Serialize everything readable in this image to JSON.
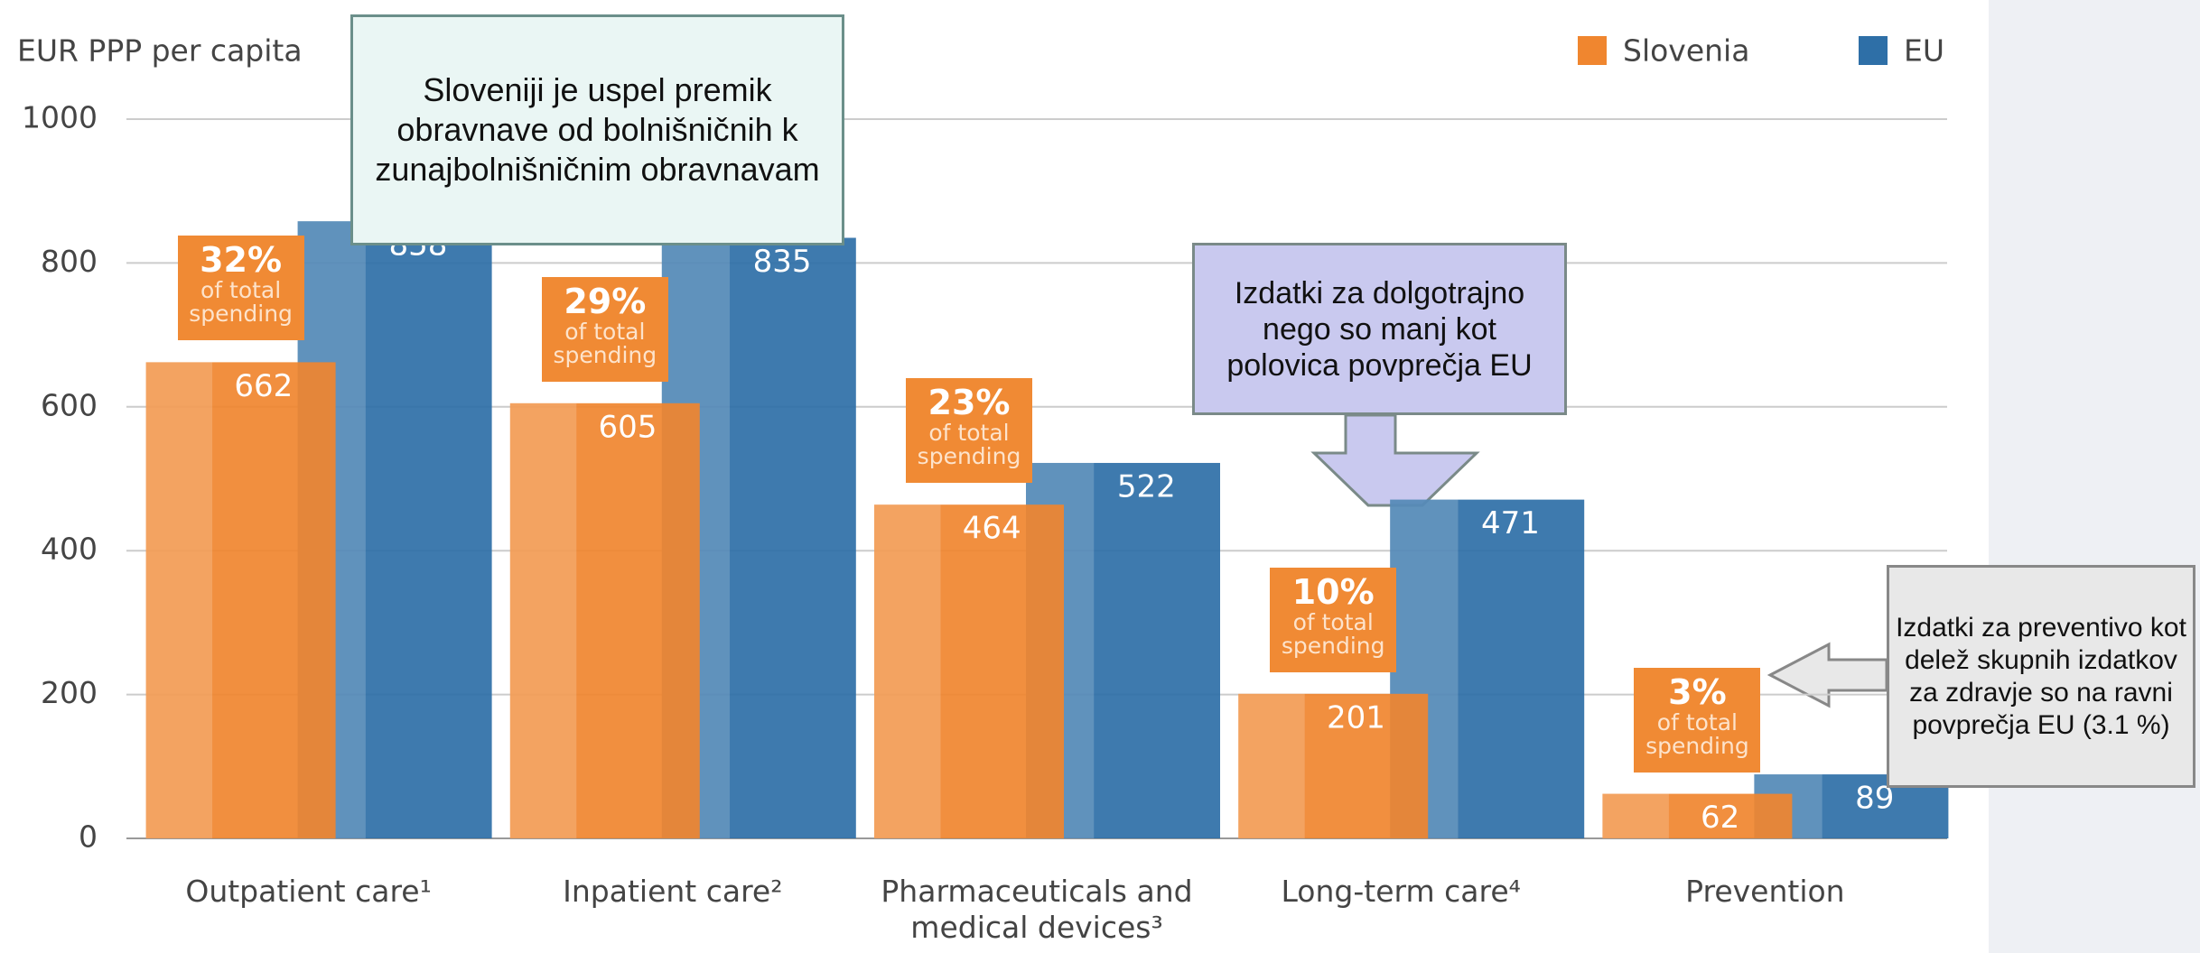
{
  "chart_data": {
    "type": "bar",
    "y_label": "EUR PPP per capita",
    "categories": [
      "Outpatient care¹",
      "Inpatient care²",
      "Pharmaceuticals and medical devices³",
      "Long-term care⁴",
      "Prevention"
    ],
    "series": [
      {
        "name": "Slovenia",
        "color": "#f0862f",
        "values": [
          662,
          605,
          464,
          201,
          62
        ]
      },
      {
        "name": "EU",
        "color": "#2e6fa7",
        "values": [
          858,
          835,
          522,
          471,
          89
        ]
      }
    ],
    "share_labels": [
      "32%",
      "29%",
      "23%",
      "10%",
      "3%"
    ],
    "share_note": "of total spending",
    "ylim": [
      0,
      1000
    ],
    "yticks": [
      0,
      200,
      400,
      600,
      800,
      1000
    ],
    "grid": true,
    "legend": "top-right",
    "annotations": [
      {
        "text": "Sloveniji je uspel premik obravnave od bolnišničnih k zunajbolnišničnim obravnavam"
      },
      {
        "text": "Izdatki za dolgotrajno nego so manj kot polovica povprečja EU"
      },
      {
        "text": "Izdatki za preventivo kot delež skupnih izdatkov za zdravje so na ravni povprečja EU (3.1 %)"
      }
    ]
  }
}
